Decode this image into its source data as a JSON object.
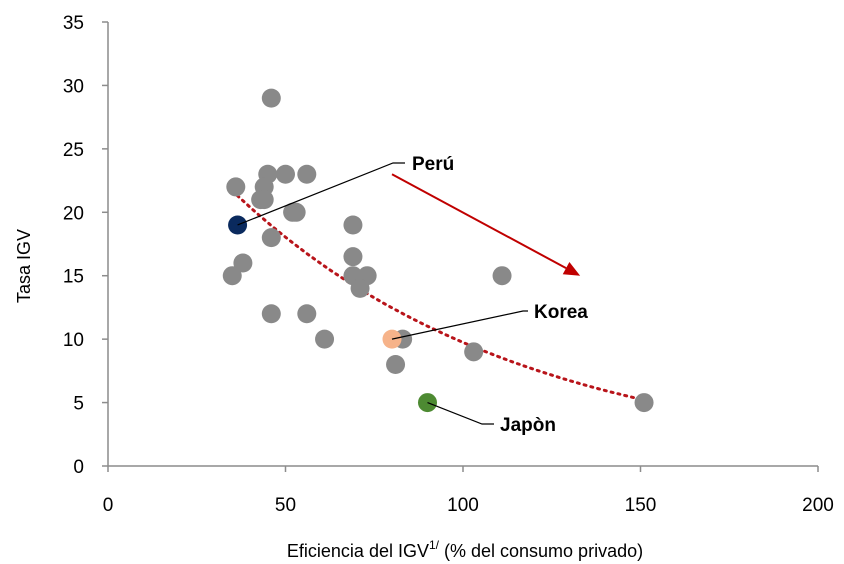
{
  "chart_data": {
    "type": "scatter",
    "xlabel_main": "Eficiencia del IGV",
    "xlabel_sup": "1/",
    "xlabel_rest": " (% del consumo privado)",
    "ylabel": "Tasa IGV",
    "xlim": [
      0,
      200
    ],
    "ylim": [
      0,
      35
    ],
    "x_ticks": [
      "0",
      "50",
      "100",
      "150",
      "200"
    ],
    "y_ticks": [
      "0",
      "5",
      "10",
      "15",
      "20",
      "25",
      "30",
      "35"
    ],
    "grid": false,
    "colors": {
      "points": "#898989",
      "peru": "#0a2a5e",
      "korea": "#f6b38a",
      "japan": "#4d8a32",
      "trend": "#b8141a",
      "arrow": "#c00000",
      "axis": "#8c8c8c"
    },
    "points": [
      {
        "x": 46,
        "y": 29
      },
      {
        "x": 36,
        "y": 22
      },
      {
        "x": 45,
        "y": 23
      },
      {
        "x": 50,
        "y": 23
      },
      {
        "x": 56,
        "y": 23
      },
      {
        "x": 44,
        "y": 22
      },
      {
        "x": 43,
        "y": 21
      },
      {
        "x": 44,
        "y": 21
      },
      {
        "x": 52,
        "y": 20
      },
      {
        "x": 53,
        "y": 20
      },
      {
        "x": 46,
        "y": 18
      },
      {
        "x": 69,
        "y": 19
      },
      {
        "x": 69,
        "y": 16.5
      },
      {
        "x": 38,
        "y": 16
      },
      {
        "x": 35,
        "y": 15
      },
      {
        "x": 69,
        "y": 15
      },
      {
        "x": 73,
        "y": 15
      },
      {
        "x": 71,
        "y": 14
      },
      {
        "x": 111,
        "y": 15
      },
      {
        "x": 46,
        "y": 12
      },
      {
        "x": 56,
        "y": 12
      },
      {
        "x": 61,
        "y": 10
      },
      {
        "x": 83,
        "y": 10
      },
      {
        "x": 81,
        "y": 8
      },
      {
        "x": 103,
        "y": 9
      },
      {
        "x": 151,
        "y": 5
      }
    ],
    "highlights": [
      {
        "name": "Perú",
        "x": 36.5,
        "y": 19,
        "color_key": "peru"
      },
      {
        "name": "Korea",
        "x": 80,
        "y": 10,
        "color_key": "korea"
      },
      {
        "name": "Japòn",
        "x": 90,
        "y": 5,
        "color_key": "japan"
      }
    ],
    "trendline": {
      "type": "exponential",
      "x_start": 35,
      "x_end": 151,
      "y_start": 21.7,
      "y_end": 5.2
    },
    "arrow": {
      "from": [
        80,
        23
      ],
      "to": [
        133,
        15
      ]
    }
  }
}
